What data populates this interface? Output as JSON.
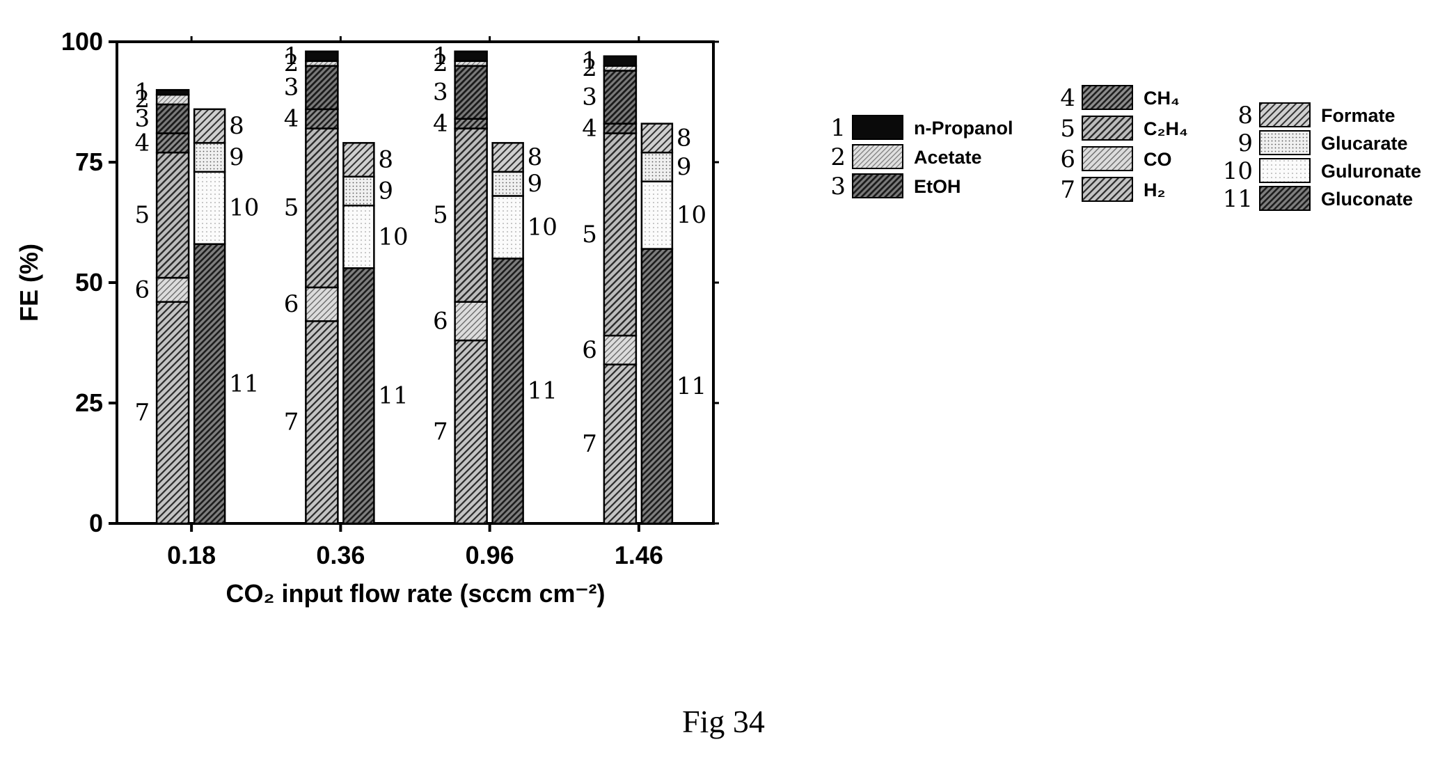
{
  "chart_data": {
    "type": "bar",
    "stacked": true,
    "title": "",
    "xlabel": "CO₂ input flow rate (sccm cm⁻²)",
    "ylabel": "FE (%)",
    "ylim": [
      0,
      100
    ],
    "yticks": [
      0,
      25,
      50,
      75,
      100
    ],
    "categories": [
      "0.18",
      "0.36",
      "0.96",
      "1.46"
    ],
    "gas_liquid_products": {
      "stack_order_bottom_to_top": [
        "7",
        "6",
        "5",
        "4",
        "3",
        "2",
        "1"
      ],
      "series": [
        {
          "id": "7",
          "name": "H₂",
          "values": [
            46,
            42,
            38,
            33
          ]
        },
        {
          "id": "6",
          "name": "CO",
          "values": [
            5,
            7,
            8,
            6
          ]
        },
        {
          "id": "5",
          "name": "C₂H₄",
          "values": [
            26,
            33,
            36,
            42
          ]
        },
        {
          "id": "4",
          "name": "CH₄",
          "values": [
            4,
            4,
            2,
            2
          ]
        },
        {
          "id": "3",
          "name": "EtOH",
          "values": [
            6,
            9,
            11,
            11
          ]
        },
        {
          "id": "2",
          "name": "Acetate",
          "values": [
            2,
            1,
            1,
            1
          ]
        },
        {
          "id": "1",
          "name": "n-Propanol",
          "values": [
            1,
            2,
            2,
            2
          ]
        }
      ]
    },
    "oxidation_products": {
      "stack_order_bottom_to_top": [
        "11",
        "10",
        "9",
        "8"
      ],
      "series": [
        {
          "id": "11",
          "name": "Gluconate",
          "values": [
            58,
            53,
            55,
            57
          ]
        },
        {
          "id": "10",
          "name": "Guluronate",
          "values": [
            15,
            13,
            13,
            14
          ]
        },
        {
          "id": "9",
          "name": "Glucarate",
          "values": [
            6,
            6,
            5,
            6
          ]
        },
        {
          "id": "8",
          "name": "Formate",
          "values": [
            7,
            7,
            6,
            6
          ]
        }
      ]
    },
    "legend_placement": "right",
    "grid": false
  },
  "legend": {
    "columns": [
      [
        {
          "id": "1",
          "label": "n-Propanol"
        },
        {
          "id": "2",
          "label": "Acetate"
        },
        {
          "id": "3",
          "label": "EtOH"
        }
      ],
      [
        {
          "id": "4",
          "label": "CH₄"
        },
        {
          "id": "5",
          "label": "C₂H₄"
        },
        {
          "id": "6",
          "label": "CO"
        },
        {
          "id": "7",
          "label": "H₂"
        }
      ],
      [
        {
          "id": "8",
          "label": "Formate"
        },
        {
          "id": "9",
          "label": "Glucarate"
        },
        {
          "id": "10",
          "label": "Guluronate"
        },
        {
          "id": "11",
          "label": "Gluconate"
        }
      ]
    ]
  },
  "caption": "Fig 34"
}
